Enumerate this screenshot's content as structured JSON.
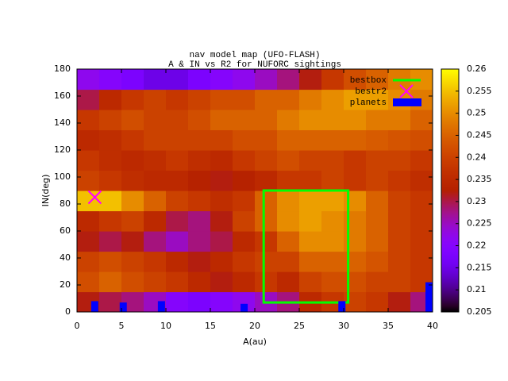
{
  "chart_data": {
    "type": "heatmap",
    "title": "nav model map (UFO-FLASH)",
    "subtitle": "A & IN vs R2 for NUFORC sightings",
    "xlabel": "A(au)",
    "ylabel": "IN(deg)",
    "xlim": [
      0,
      40
    ],
    "xticks": [
      0,
      5,
      10,
      15,
      20,
      25,
      30,
      35,
      40
    ],
    "ylim": [
      0,
      180
    ],
    "yticks": [
      0,
      20,
      40,
      60,
      80,
      100,
      120,
      140,
      160,
      180
    ],
    "clim": [
      0.205,
      0.26
    ],
    "cticks": [
      0.205,
      0.21,
      0.215,
      0.22,
      0.225,
      0.23,
      0.235,
      0.24,
      0.245,
      0.25,
      0.255,
      0.26
    ],
    "xbins": [
      0,
      2.5,
      5,
      7.5,
      10,
      12.5,
      15,
      17.5,
      20,
      22.5,
      25,
      27.5,
      30,
      32.5,
      35,
      37.5,
      40
    ],
    "ybins": [
      0,
      15,
      30,
      45,
      60,
      75,
      90,
      105,
      120,
      135,
      150,
      165,
      180
    ],
    "z": [
      [
        0.232,
        0.23,
        0.228,
        0.225,
        0.22,
        0.218,
        0.22,
        0.222,
        0.225,
        0.228,
        0.235,
        0.238,
        0.24,
        0.238,
        0.232,
        0.228
      ],
      [
        0.242,
        0.245,
        0.242,
        0.24,
        0.238,
        0.235,
        0.232,
        0.235,
        0.238,
        0.235,
        0.24,
        0.242,
        0.242,
        0.24,
        0.24,
        0.238
      ],
      [
        0.24,
        0.242,
        0.24,
        0.238,
        0.235,
        0.232,
        0.235,
        0.238,
        0.24,
        0.24,
        0.245,
        0.245,
        0.245,
        0.243,
        0.24,
        0.238
      ],
      [
        0.232,
        0.23,
        0.232,
        0.228,
        0.225,
        0.228,
        0.23,
        0.235,
        0.238,
        0.245,
        0.25,
        0.25,
        0.248,
        0.245,
        0.24,
        0.238
      ],
      [
        0.235,
        0.238,
        0.24,
        0.235,
        0.23,
        0.228,
        0.232,
        0.24,
        0.245,
        0.25,
        0.252,
        0.25,
        0.248,
        0.245,
        0.24,
        0.238
      ],
      [
        0.255,
        0.255,
        0.25,
        0.245,
        0.24,
        0.238,
        0.236,
        0.238,
        0.245,
        0.25,
        0.252,
        0.252,
        0.25,
        0.245,
        0.24,
        0.238
      ],
      [
        0.24,
        0.238,
        0.236,
        0.235,
        0.235,
        0.233,
        0.232,
        0.233,
        0.235,
        0.238,
        0.238,
        0.24,
        0.238,
        0.24,
        0.238,
        0.236
      ],
      [
        0.238,
        0.236,
        0.235,
        0.236,
        0.238,
        0.236,
        0.235,
        0.238,
        0.24,
        0.242,
        0.24,
        0.24,
        0.238,
        0.24,
        0.24,
        0.238
      ],
      [
        0.235,
        0.236,
        0.238,
        0.24,
        0.24,
        0.24,
        0.24,
        0.242,
        0.242,
        0.245,
        0.245,
        0.245,
        0.245,
        0.244,
        0.243,
        0.242
      ],
      [
        0.238,
        0.24,
        0.242,
        0.24,
        0.24,
        0.242,
        0.245,
        0.245,
        0.245,
        0.248,
        0.25,
        0.25,
        0.25,
        0.248,
        0.248,
        0.245
      ],
      [
        0.23,
        0.235,
        0.238,
        0.24,
        0.238,
        0.24,
        0.242,
        0.242,
        0.245,
        0.245,
        0.248,
        0.25,
        0.252,
        0.252,
        0.25,
        0.248
      ],
      [
        0.222,
        0.22,
        0.218,
        0.215,
        0.215,
        0.218,
        0.22,
        0.222,
        0.225,
        0.228,
        0.232,
        0.238,
        0.242,
        0.245,
        0.248,
        0.25
      ]
    ],
    "overlays": [
      {
        "name": "bestbox",
        "type": "box",
        "color": "#00ff00",
        "x": [
          21,
          30.5
        ],
        "y": [
          7,
          90
        ]
      },
      {
        "name": "bestr2",
        "type": "point",
        "color": "#ff00ff",
        "x": [
          2
        ],
        "y": [
          85
        ]
      },
      {
        "name": "planets",
        "type": "bars",
        "color": "#0000ff",
        "x": [
          2,
          5.2,
          9.5,
          18.8,
          29.8,
          39.6
        ],
        "y": [
          8,
          7,
          8,
          6,
          8,
          22
        ]
      }
    ]
  }
}
